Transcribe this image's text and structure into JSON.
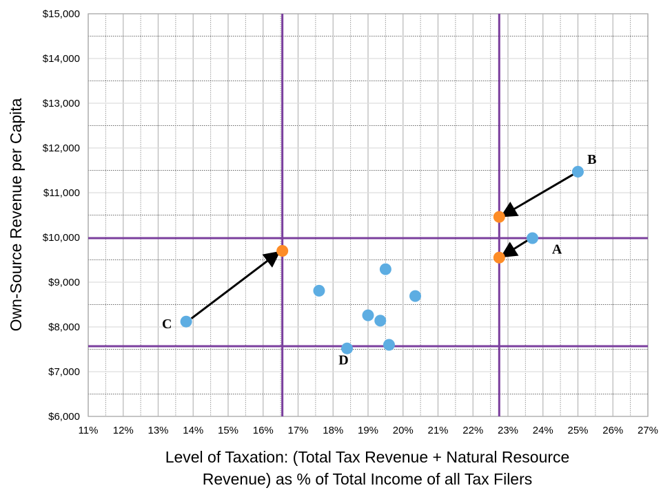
{
  "chart_data": {
    "type": "scatter",
    "title": "",
    "xlabel_lines": [
      "Level of Taxation: (Total Tax Revenue + Natural Resource",
      "Revenue) as % of Total Income of all Tax Filers"
    ],
    "ylabel": "Own-Source Revenue per Capita",
    "xlim": [
      11,
      27
    ],
    "ylim": [
      6000,
      15000
    ],
    "x_ticks": [
      11,
      12,
      13,
      14,
      15,
      16,
      17,
      18,
      19,
      20,
      21,
      22,
      23,
      24,
      25,
      26,
      27
    ],
    "x_tick_labels": [
      "11%",
      "12%",
      "13%",
      "14%",
      "15%",
      "16%",
      "17%",
      "18%",
      "19%",
      "20%",
      "21%",
      "22%",
      "23%",
      "24%",
      "25%",
      "26%",
      "27%"
    ],
    "y_ticks": [
      6000,
      7000,
      8000,
      9000,
      10000,
      11000,
      12000,
      13000,
      14000,
      15000
    ],
    "y_tick_labels": [
      "$6,000",
      "$7,000",
      "$8,000",
      "$9,000",
      "$10,000",
      "$11,000",
      "$12,000",
      "$13,000",
      "$14,000",
      "$15,000"
    ],
    "grid": true,
    "colors": {
      "blue": "#5dade2",
      "orange": "#fd8c26",
      "purple": "#7b3f9e",
      "arrow": "#000000"
    },
    "series": [
      {
        "name": "blue",
        "points": [
          [
            13.8,
            8120
          ],
          [
            17.6,
            8810
          ],
          [
            18.4,
            7520
          ],
          [
            19.0,
            8260
          ],
          [
            19.35,
            8140
          ],
          [
            19.5,
            9290
          ],
          [
            19.6,
            7600
          ],
          [
            20.35,
            8690
          ],
          [
            23.7,
            9985
          ],
          [
            25.0,
            11470
          ]
        ]
      },
      {
        "name": "orange",
        "points": [
          [
            16.55,
            9700
          ],
          [
            22.75,
            10460
          ],
          [
            22.75,
            9550
          ]
        ]
      }
    ],
    "reference_lines": {
      "vertical_x": [
        16.55,
        22.75
      ],
      "horizontal_y": [
        9985,
        7570
      ]
    },
    "annotations": [
      {
        "label": "A",
        "x": 24.4,
        "y": 9640,
        "arrow_from": [
          23.55,
          9930
        ],
        "arrow_to": [
          22.88,
          9600
        ]
      },
      {
        "label": "B",
        "x": 25.4,
        "y": 11650,
        "arrow_from": [
          25.0,
          11470
        ],
        "arrow_to": [
          22.88,
          10500
        ]
      },
      {
        "label": "C",
        "x": 13.25,
        "y": 7970,
        "arrow_from": [
          13.95,
          8190
        ],
        "arrow_to": [
          16.4,
          9640
        ]
      },
      {
        "label": "D",
        "x": 18.3,
        "y": 7160
      }
    ]
  }
}
